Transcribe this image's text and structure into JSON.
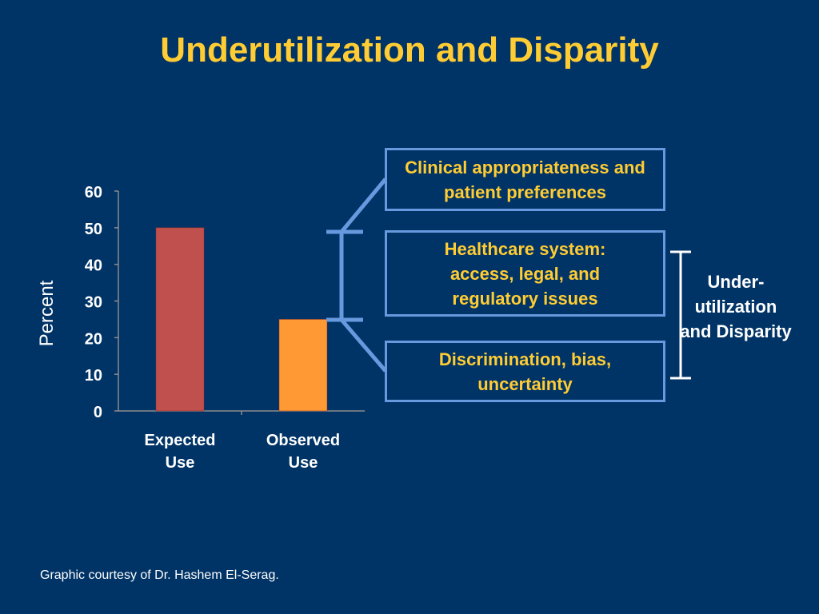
{
  "title": "Underutilization and Disparity",
  "chart_data": {
    "type": "bar",
    "categories": [
      [
        "Expected",
        "Use"
      ],
      [
        "Observed",
        "Use"
      ]
    ],
    "values": [
      50,
      25
    ],
    "bar_colors": [
      "#C0504D",
      "#FF9933"
    ],
    "ylabel": "Percent",
    "xlabel": "",
    "ylim": [
      0,
      60
    ],
    "yticks": [
      0,
      10,
      20,
      30,
      40,
      50,
      60
    ],
    "grid": false,
    "legend": "none"
  },
  "factors": [
    "Clinical appropriateness and patient preferences",
    "Healthcare system: access, legal, and regulatory issues",
    "Discrimination, bias, uncertainty"
  ],
  "side_label": "Under-utilization and Disparity",
  "footer": "Graphic courtesy of Dr. Hashem El-Serag."
}
